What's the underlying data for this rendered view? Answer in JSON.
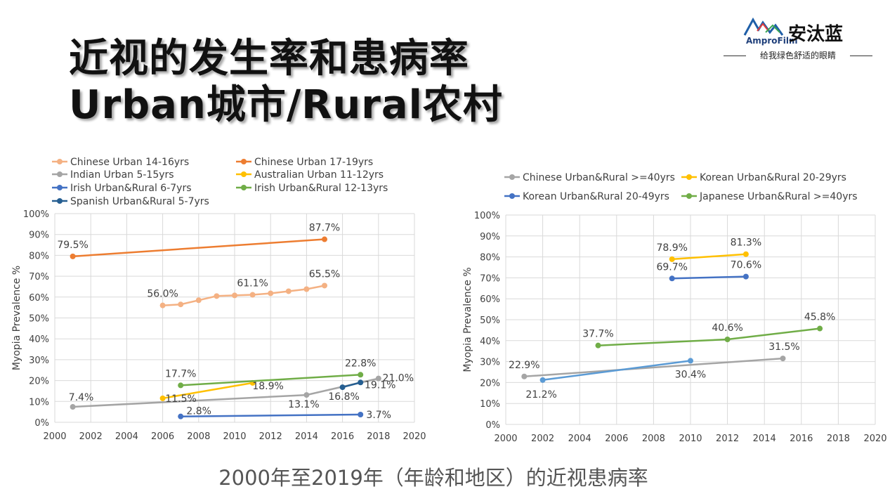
{
  "header": {
    "title_line1": "近视的发生率和患病率",
    "title_line2": "Urban城市/Rural农村"
  },
  "logo": {
    "brand_en": "AmproFilm",
    "brand_cn": "安汰蓝",
    "tagline": "给我绿色舒适的眼睛"
  },
  "caption": "2000年至2019年（年龄和地区）的近视患病率",
  "chart_data": [
    {
      "type": "line",
      "ylabel": "Myopia Prevalence %",
      "xlim": [
        2000,
        2020
      ],
      "ylim": [
        0,
        100
      ],
      "x_ticks": [
        "2000",
        "2002",
        "2004",
        "2006",
        "2008",
        "2010",
        "2012",
        "2014",
        "2016",
        "2018",
        "2020"
      ],
      "y_ticks": [
        "0%",
        "10%",
        "20%",
        "30%",
        "40%",
        "50%",
        "60%",
        "70%",
        "80%",
        "90%",
        "100%"
      ],
      "grid": true,
      "legend_position": "top",
      "series": [
        {
          "name": "Chinese Urban 14-16yrs",
          "color": "#f4b183",
          "points": [
            [
              2006,
              56.0
            ],
            [
              2007,
              56.5
            ],
            [
              2008,
              58.5
            ],
            [
              2009,
              60.5
            ],
            [
              2010,
              60.8
            ],
            [
              2011,
              61.1
            ],
            [
              2012,
              61.8
            ],
            [
              2013,
              62.8
            ],
            [
              2014,
              63.8
            ],
            [
              2015,
              65.5
            ]
          ]
        },
        {
          "name": "Chinese Urban 17-19yrs",
          "color": "#ed7d31",
          "points": [
            [
              2001,
              79.5
            ],
            [
              2015,
              87.7
            ]
          ]
        },
        {
          "name": "Indian Urban 5-15yrs",
          "color": "#a5a5a5",
          "points": [
            [
              2001,
              7.4
            ],
            [
              2014,
              13.1
            ],
            [
              2018,
              21.0
            ]
          ]
        },
        {
          "name": "Australian Urban 11-12yrs",
          "color": "#ffc000",
          "points": [
            [
              2006,
              11.5
            ],
            [
              2011,
              18.9
            ]
          ]
        },
        {
          "name": "Irish Urban&Rural 6-7yrs",
          "color": "#4472c4",
          "points": [
            [
              2007,
              2.8
            ],
            [
              2017,
              3.7
            ]
          ]
        },
        {
          "name": "Irish Urban&Rural 12-13yrs",
          "color": "#70ad47",
          "points": [
            [
              2007,
              17.7
            ],
            [
              2017,
              22.8
            ]
          ]
        },
        {
          "name": "Spanish Urban&Rural 5-7yrs",
          "color": "#255e91",
          "points": [
            [
              2016,
              16.8
            ],
            [
              2017,
              19.1
            ]
          ]
        }
      ],
      "annotations": [
        {
          "text": "79.5%",
          "x": 2001,
          "y": 79.5
        },
        {
          "text": "87.7%",
          "x": 2015,
          "y": 87.7
        },
        {
          "text": "56.0%",
          "x": 2006,
          "y": 56.0
        },
        {
          "text": "61.1%",
          "x": 2011,
          "y": 61.1
        },
        {
          "text": "65.5%",
          "x": 2015,
          "y": 65.5
        },
        {
          "text": "7.4%",
          "x": 2001,
          "y": 7.4
        },
        {
          "text": "11.5%",
          "x": 2006,
          "y": 11.5
        },
        {
          "text": "17.7%",
          "x": 2007,
          "y": 17.7
        },
        {
          "text": "18.9%",
          "x": 2011,
          "y": 18.9
        },
        {
          "text": "2.8%",
          "x": 2007,
          "y": 2.8
        },
        {
          "text": "13.1%",
          "x": 2014,
          "y": 13.1
        },
        {
          "text": "16.8%",
          "x": 2016,
          "y": 16.8
        },
        {
          "text": "22.8%",
          "x": 2017,
          "y": 22.8
        },
        {
          "text": "19.1%",
          "x": 2017,
          "y": 19.1
        },
        {
          "text": "21.0%",
          "x": 2018,
          "y": 21.0
        },
        {
          "text": "3.7%",
          "x": 2017,
          "y": 3.7
        }
      ]
    },
    {
      "type": "line",
      "ylabel": "Myopia Prevalence %",
      "xlim": [
        2000,
        2020
      ],
      "ylim": [
        0,
        100
      ],
      "x_ticks": [
        "2000",
        "2002",
        "2004",
        "2006",
        "2008",
        "2010",
        "2012",
        "2014",
        "2016",
        "2018",
        "2020"
      ],
      "y_ticks": [
        "0%",
        "10%",
        "20%",
        "30%",
        "40%",
        "50%",
        "60%",
        "70%",
        "80%",
        "90%",
        "100%"
      ],
      "grid": true,
      "legend_position": "top",
      "series": [
        {
          "name": "Chinese Urban&Rural >=40yrs",
          "color": "#a5a5a5",
          "points": [
            [
              2001,
              22.9
            ],
            [
              2015,
              31.5
            ]
          ]
        },
        {
          "name": "Korean Urban&Rural 20-29yrs",
          "color": "#ffc000",
          "points": [
            [
              2009,
              78.9
            ],
            [
              2013,
              81.3
            ]
          ]
        },
        {
          "name": "Korean Urban&Rural 20-49yrs",
          "color": "#4472c4",
          "points": [
            [
              2009,
              69.7
            ],
            [
              2013,
              70.6
            ]
          ]
        },
        {
          "name": "Japanese Urban&Rural >=40yrs",
          "color": "#70ad47",
          "points": [
            [
              2005,
              37.7
            ],
            [
              2012,
              40.6
            ],
            [
              2017,
              45.8
            ]
          ]
        },
        {
          "name": "",
          "color": "#5b9bd5",
          "points": [
            [
              2002,
              21.2
            ],
            [
              2010,
              30.4
            ]
          ]
        }
      ],
      "annotations": [
        {
          "text": "78.9%",
          "x": 2009,
          "y": 78.9
        },
        {
          "text": "81.3%",
          "x": 2013,
          "y": 81.3
        },
        {
          "text": "69.7%",
          "x": 2009,
          "y": 69.7
        },
        {
          "text": "70.6%",
          "x": 2013,
          "y": 70.6
        },
        {
          "text": "37.7%",
          "x": 2005,
          "y": 37.7
        },
        {
          "text": "40.6%",
          "x": 2012,
          "y": 40.6
        },
        {
          "text": "45.8%",
          "x": 2017,
          "y": 45.8
        },
        {
          "text": "22.9%",
          "x": 2001,
          "y": 22.9
        },
        {
          "text": "21.2%",
          "x": 2002,
          "y": 21.2
        },
        {
          "text": "30.4%",
          "x": 2010,
          "y": 30.4
        },
        {
          "text": "31.5%",
          "x": 2015,
          "y": 31.5
        }
      ]
    }
  ]
}
